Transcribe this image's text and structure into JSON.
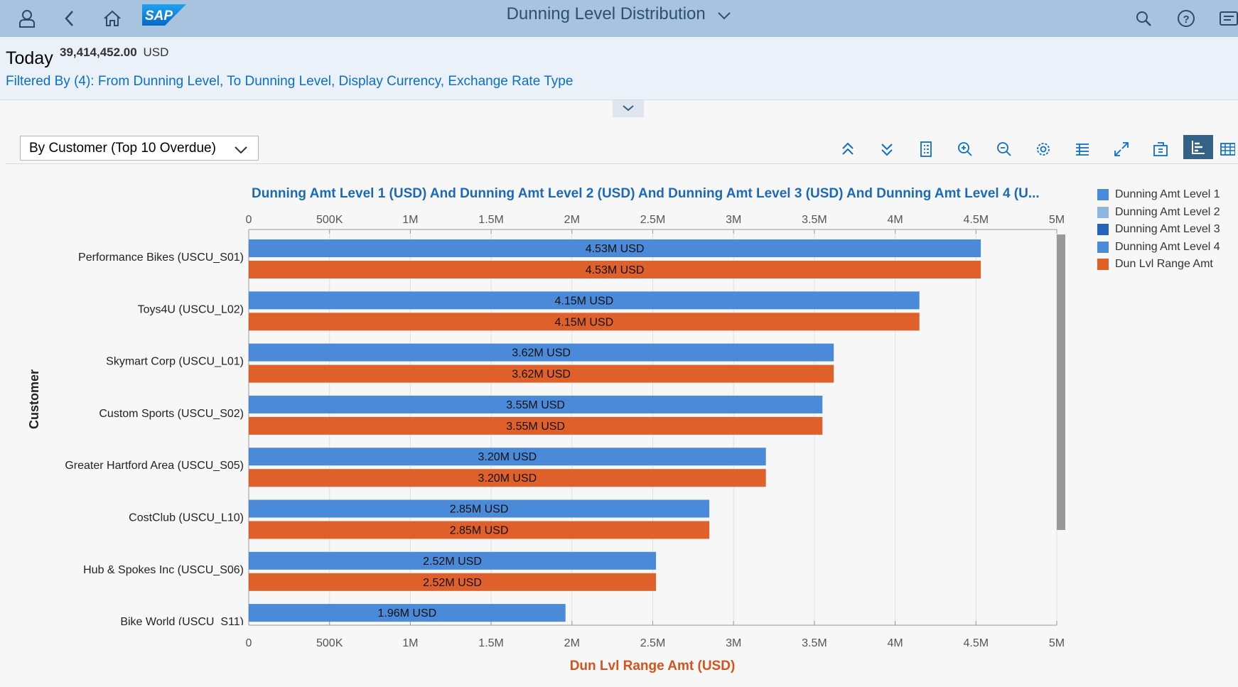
{
  "shell": {
    "title": "Dunning Level Distribution",
    "logo_text": "SAP",
    "icons": [
      "user-icon",
      "back-icon",
      "home-icon",
      "search-icon",
      "help-icon",
      "notifications-icon"
    ]
  },
  "header": {
    "today_label": "Today",
    "total_value": "39,414,452.00",
    "total_currency": "USD",
    "filter_text": "Filtered By (4): From Dunning Level, To Dunning Level, Display Currency, Exchange Rate Type"
  },
  "view_selector": {
    "selected": "By Customer (Top 10 Overdue)"
  },
  "toolbar": {
    "icons": [
      "expand-all-icon",
      "collapse-all-icon",
      "legend-icon",
      "zoom-in-icon",
      "zoom-out-icon",
      "settings-icon",
      "details-icon",
      "fullscreen-icon",
      "export-icon",
      "chart-view-icon",
      "table-view-icon"
    ]
  },
  "colors": {
    "level1": "#4a8ad8",
    "level2": "#8db5e0",
    "level3": "#2563b8",
    "level4": "#4a8ad8",
    "range": "#e0602b"
  },
  "chart_data": {
    "type": "bar",
    "orientation": "horizontal",
    "title": "Dunning Amt Level 1 (USD) And Dunning Amt Level 2 (USD) And Dunning Amt Level 3 (USD) And Dunning Amt Level 4 (U...",
    "ylabel": "Customer",
    "xlabel": "Dun Lvl Range Amt (USD)",
    "xlim": [
      0,
      5000000
    ],
    "x_ticks": [
      "0",
      "500K",
      "1M",
      "1.5M",
      "2M",
      "2.5M",
      "3M",
      "3.5M",
      "4M",
      "4.5M",
      "5M"
    ],
    "categories": [
      "Performance Bikes (USCU_S01)",
      "Toys4U (USCU_L02)",
      "Skymart Corp (USCU_L01)",
      "Custom Sports (USCU_S02)",
      "Greater Hartford Area (USCU_S05)",
      "CostClub (USCU_L10)",
      "Hub & Spokes Inc (USCU_S06)",
      "Bike World (USCU_S11)"
    ],
    "series": [
      {
        "name": "Dunning Amt Level 1",
        "values": [
          4530000,
          4150000,
          3620000,
          3550000,
          3200000,
          2850000,
          2520000,
          1960000
        ],
        "labels": [
          "4.53M USD",
          "4.15M USD",
          "3.62M USD",
          "3.55M USD",
          "3.20M USD",
          "2.85M USD",
          "2.52M USD",
          "1.96M USD"
        ]
      },
      {
        "name": "Dun Lvl Range Amt",
        "values": [
          4530000,
          4150000,
          3620000,
          3550000,
          3200000,
          2850000,
          2520000,
          null
        ],
        "labels": [
          "4.53M USD",
          "4.15M USD",
          "3.62M USD",
          "3.55M USD",
          "3.20M USD",
          "2.85M USD",
          "2.52M USD",
          ""
        ]
      }
    ],
    "legend": {
      "position": "right",
      "items": [
        {
          "name": "Dunning Amt Level 1",
          "color": "#4a8ad8"
        },
        {
          "name": "Dunning Amt Level 2",
          "color": "#8db5e0"
        },
        {
          "name": "Dunning Amt Level 3",
          "color": "#2563b8"
        },
        {
          "name": "Dunning Amt Level 4",
          "color": "#4a8ad8"
        },
        {
          "name": "Dun Lvl Range Amt",
          "color": "#e0602b"
        }
      ]
    },
    "grid": true
  }
}
